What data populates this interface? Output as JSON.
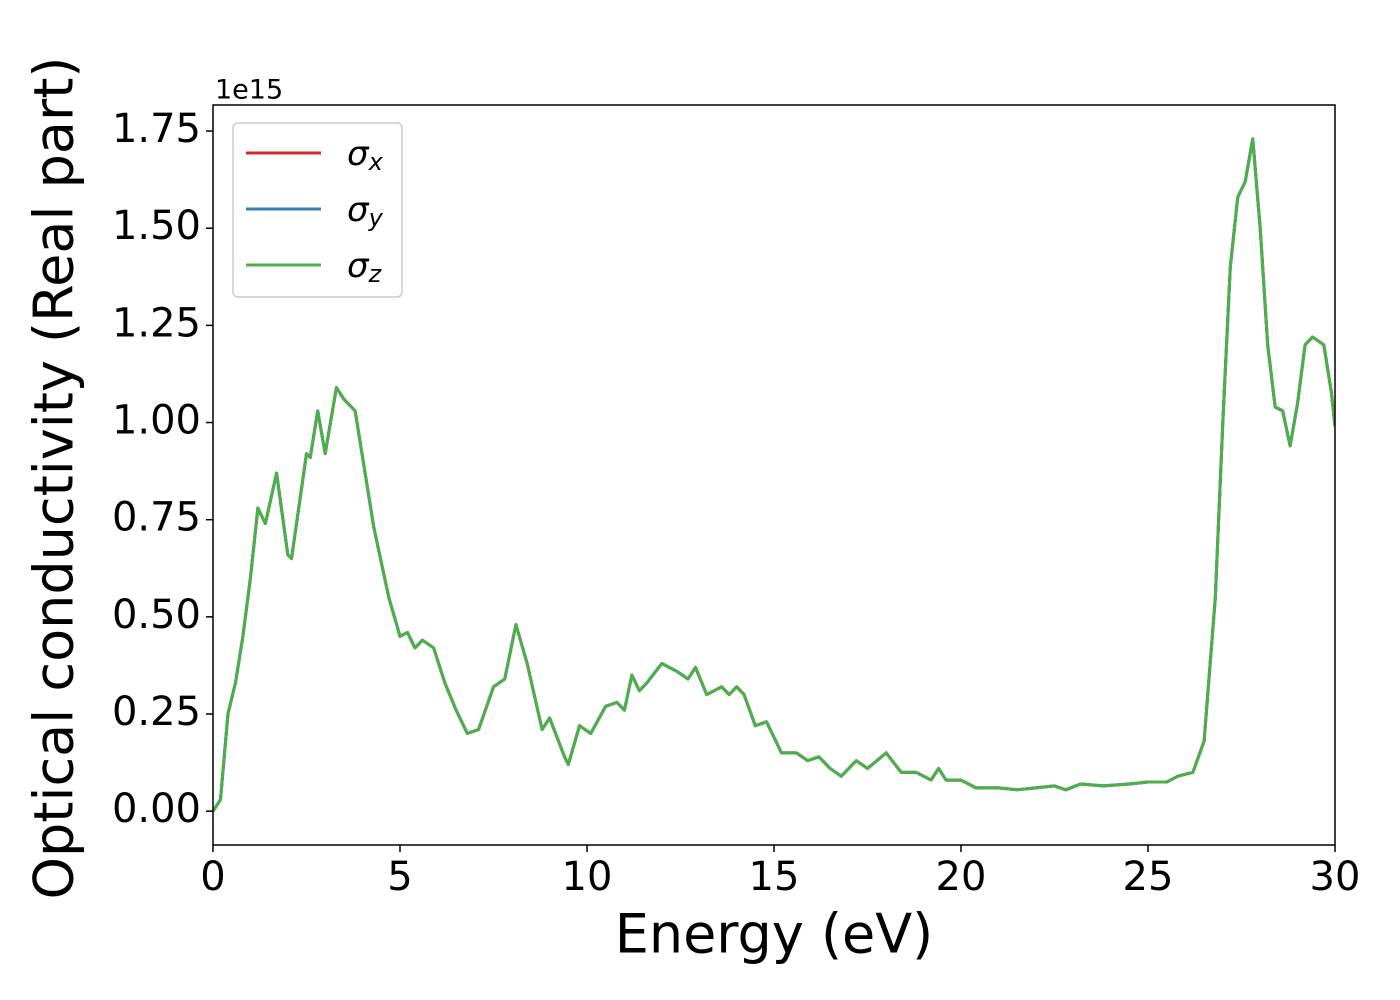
{
  "chart_data": {
    "type": "line",
    "x_label": "Energy (eV)",
    "y_label": "Optical conductivity (Real part)",
    "y_offset_label": "1e15",
    "x": [
      0,
      0.2,
      0.4,
      0.6,
      0.8,
      1.0,
      1.2,
      1.4,
      1.7,
      2.0,
      2.1,
      2.5,
      2.6,
      2.8,
      3.0,
      3.3,
      3.5,
      3.8,
      4.0,
      4.3,
      4.7,
      5.0,
      5.2,
      5.4,
      5.6,
      5.9,
      6.2,
      6.5,
      6.8,
      7.1,
      7.5,
      7.8,
      8.1,
      8.4,
      8.8,
      9.0,
      9.4,
      9.5,
      9.8,
      10.1,
      10.5,
      10.8,
      11.0,
      11.2,
      11.4,
      11.6,
      12.0,
      12.4,
      12.7,
      12.9,
      13.2,
      13.6,
      13.8,
      14.0,
      14.2,
      14.5,
      14.8,
      15.2,
      15.6,
      15.9,
      16.2,
      16.5,
      16.8,
      17.2,
      17.5,
      18.0,
      18.4,
      18.8,
      19.2,
      19.4,
      19.6,
      20.0,
      20.4,
      21.0,
      21.5,
      22.0,
      22.5,
      22.8,
      23.2,
      23.8,
      24.5,
      25.0,
      25.5,
      25.8,
      26.2,
      26.5,
      26.8,
      27.0,
      27.2,
      27.4,
      27.6,
      27.8,
      28.0,
      28.2,
      28.4,
      28.6,
      28.8,
      29.0,
      29.2,
      29.4,
      29.7,
      29.9,
      30.0
    ],
    "series": [
      {
        "name": "σx",
        "color": "#d62728",
        "values": [
          0,
          0.03,
          0.25,
          0.33,
          0.45,
          0.6,
          0.78,
          0.74,
          0.87,
          0.66,
          0.65,
          0.92,
          0.91,
          1.03,
          0.92,
          1.09,
          1.06,
          1.03,
          0.91,
          0.73,
          0.55,
          0.45,
          0.46,
          0.42,
          0.44,
          0.42,
          0.33,
          0.26,
          0.2,
          0.21,
          0.32,
          0.34,
          0.48,
          0.38,
          0.21,
          0.24,
          0.14,
          0.12,
          0.22,
          0.2,
          0.27,
          0.28,
          0.26,
          0.35,
          0.31,
          0.33,
          0.38,
          0.36,
          0.34,
          0.37,
          0.3,
          0.32,
          0.3,
          0.32,
          0.3,
          0.22,
          0.23,
          0.15,
          0.15,
          0.13,
          0.14,
          0.11,
          0.09,
          0.13,
          0.11,
          0.15,
          0.1,
          0.1,
          0.08,
          0.11,
          0.08,
          0.08,
          0.06,
          0.06,
          0.055,
          0.06,
          0.065,
          0.055,
          0.07,
          0.065,
          0.07,
          0.075,
          0.075,
          0.09,
          0.1,
          0.18,
          0.55,
          1.0,
          1.4,
          1.58,
          1.62,
          1.73,
          1.5,
          1.2,
          1.04,
          1.03,
          0.94,
          1.05,
          1.2,
          1.22,
          1.2,
          1.08,
          0.99
        ]
      },
      {
        "name": "σy",
        "color": "#377eb8",
        "values": [
          0,
          0.03,
          0.25,
          0.33,
          0.45,
          0.6,
          0.78,
          0.74,
          0.87,
          0.66,
          0.65,
          0.92,
          0.91,
          1.03,
          0.92,
          1.09,
          1.06,
          1.03,
          0.91,
          0.73,
          0.55,
          0.45,
          0.46,
          0.42,
          0.44,
          0.42,
          0.33,
          0.26,
          0.2,
          0.21,
          0.32,
          0.34,
          0.48,
          0.38,
          0.21,
          0.24,
          0.14,
          0.12,
          0.22,
          0.2,
          0.27,
          0.28,
          0.26,
          0.35,
          0.31,
          0.33,
          0.38,
          0.36,
          0.34,
          0.37,
          0.3,
          0.32,
          0.3,
          0.32,
          0.3,
          0.22,
          0.23,
          0.15,
          0.15,
          0.13,
          0.14,
          0.11,
          0.09,
          0.13,
          0.11,
          0.15,
          0.1,
          0.1,
          0.08,
          0.11,
          0.08,
          0.08,
          0.06,
          0.06,
          0.055,
          0.06,
          0.065,
          0.055,
          0.07,
          0.065,
          0.07,
          0.075,
          0.075,
          0.09,
          0.1,
          0.18,
          0.55,
          1.0,
          1.4,
          1.58,
          1.62,
          1.73,
          1.5,
          1.2,
          1.04,
          1.03,
          0.94,
          1.05,
          1.2,
          1.22,
          1.2,
          1.08,
          0.99
        ]
      },
      {
        "name": "σz",
        "color": "#4daf4a",
        "values": [
          0,
          0.03,
          0.25,
          0.33,
          0.45,
          0.6,
          0.78,
          0.74,
          0.87,
          0.66,
          0.65,
          0.92,
          0.91,
          1.03,
          0.92,
          1.09,
          1.06,
          1.03,
          0.91,
          0.73,
          0.55,
          0.45,
          0.46,
          0.42,
          0.44,
          0.42,
          0.33,
          0.26,
          0.2,
          0.21,
          0.32,
          0.34,
          0.48,
          0.38,
          0.21,
          0.24,
          0.14,
          0.12,
          0.22,
          0.2,
          0.27,
          0.28,
          0.26,
          0.35,
          0.31,
          0.33,
          0.38,
          0.36,
          0.34,
          0.37,
          0.3,
          0.32,
          0.3,
          0.32,
          0.3,
          0.22,
          0.23,
          0.15,
          0.15,
          0.13,
          0.14,
          0.11,
          0.09,
          0.13,
          0.11,
          0.15,
          0.1,
          0.1,
          0.08,
          0.11,
          0.08,
          0.08,
          0.06,
          0.06,
          0.055,
          0.06,
          0.065,
          0.055,
          0.07,
          0.065,
          0.07,
          0.075,
          0.075,
          0.09,
          0.1,
          0.18,
          0.55,
          1.0,
          1.4,
          1.58,
          1.62,
          1.73,
          1.5,
          1.2,
          1.04,
          1.03,
          0.94,
          1.05,
          1.2,
          1.22,
          1.2,
          1.08,
          0.99
        ]
      }
    ],
    "xlim": [
      0,
      30
    ],
    "xticks": [
      0,
      5,
      10,
      15,
      20,
      25,
      30
    ],
    "ylim": [
      -0.087,
      1.817
    ],
    "yticks": [
      {
        "value": 0,
        "label": "0.00"
      },
      0.25,
      {
        "value": 0.5,
        "label": "0.50"
      },
      0.75,
      {
        "value": 1,
        "label": "1.00"
      },
      1.25,
      {
        "value": 1.5,
        "label": "1.50"
      },
      1.75
    ],
    "grid": false,
    "legend": "upper left"
  }
}
